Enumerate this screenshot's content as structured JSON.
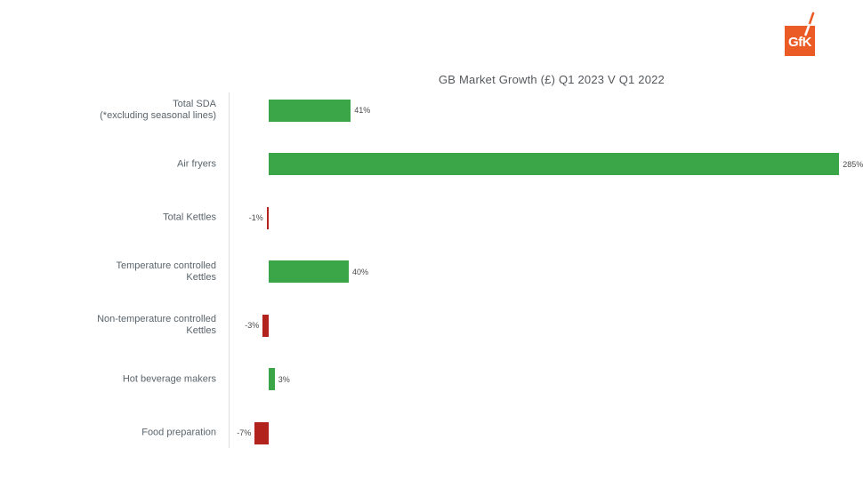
{
  "page": {
    "background": "#ffffff"
  },
  "logo": {
    "text": "GfK",
    "text_color": "#ffffff",
    "background": "#ea5b25"
  },
  "chart_data": {
    "type": "bar",
    "orientation": "horizontal",
    "title": "GB Market Growth (£) Q1 2023 V Q1 2022",
    "categories": [
      "Total SDA\n(*excluding seasonal lines)",
      "Air fryers",
      "Total Kettles",
      "Temperature controlled\nKettles",
      "Non-temperature controlled\nKettles",
      "Hot beverage makers",
      "Food preparation"
    ],
    "values": [
      41,
      285,
      -1,
      40,
      -3,
      3,
      -7
    ],
    "value_labels": [
      "41%",
      "285%",
      "-1%",
      "40%",
      "-3%",
      "3%",
      "-7%"
    ],
    "positive_color": "#3aa648",
    "negative_color": "#b2231d",
    "axis_line_color": "#d9dde0",
    "xlabel": "",
    "ylabel": "",
    "xlim": [
      -10,
      290
    ],
    "grid": false,
    "legend": false
  }
}
